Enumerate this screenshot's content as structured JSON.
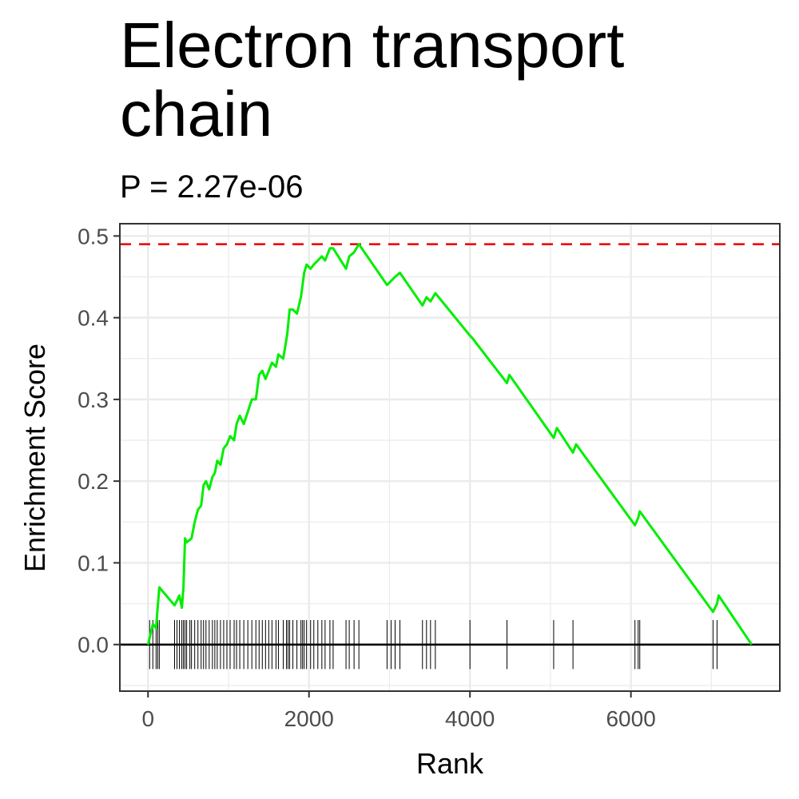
{
  "chart_data": {
    "type": "line",
    "title": "Electron transport chain",
    "subtitle": "P = 2.27e-06",
    "xlabel": "Rank",
    "ylabel": "Enrichment Score",
    "xlim": [
      -350,
      7850
    ],
    "ylim": [
      -0.057,
      0.515
    ],
    "x_ticks": [
      0,
      2000,
      4000,
      6000
    ],
    "y_ticks": [
      0.0,
      0.1,
      0.2,
      0.3,
      0.4,
      0.5
    ],
    "y_tick_labels": [
      "0.0",
      "0.1",
      "0.2",
      "0.3",
      "0.4",
      "0.5"
    ],
    "x_tick_labels": [
      "0",
      "2000",
      "4000",
      "6000"
    ],
    "grid": true,
    "colors": {
      "curve": "#00ee00",
      "max_line": "#ee0000",
      "zero_line": "#000000",
      "grid": "#ebebeb",
      "panel_border": "#333333",
      "ticks": "#000000"
    },
    "max_es": 0.49,
    "series": [
      {
        "points": [
          [
            0,
            0.0
          ],
          [
            60,
            0.025
          ],
          [
            100,
            0.02
          ],
          [
            120,
            0.045
          ],
          [
            140,
            0.07
          ],
          [
            330,
            0.048
          ],
          [
            390,
            0.06
          ],
          [
            420,
            0.045
          ],
          [
            440,
            0.07
          ],
          [
            460,
            0.13
          ],
          [
            480,
            0.125
          ],
          [
            540,
            0.13
          ],
          [
            580,
            0.15
          ],
          [
            620,
            0.165
          ],
          [
            660,
            0.17
          ],
          [
            690,
            0.195
          ],
          [
            720,
            0.2
          ],
          [
            760,
            0.19
          ],
          [
            800,
            0.205
          ],
          [
            830,
            0.21
          ],
          [
            860,
            0.225
          ],
          [
            900,
            0.22
          ],
          [
            940,
            0.24
          ],
          [
            980,
            0.245
          ],
          [
            1020,
            0.255
          ],
          [
            1070,
            0.25
          ],
          [
            1100,
            0.27
          ],
          [
            1140,
            0.28
          ],
          [
            1190,
            0.27
          ],
          [
            1240,
            0.285
          ],
          [
            1290,
            0.3
          ],
          [
            1340,
            0.3
          ],
          [
            1380,
            0.33
          ],
          [
            1420,
            0.335
          ],
          [
            1460,
            0.325
          ],
          [
            1500,
            0.335
          ],
          [
            1540,
            0.345
          ],
          [
            1590,
            0.34
          ],
          [
            1620,
            0.355
          ],
          [
            1680,
            0.35
          ],
          [
            1730,
            0.38
          ],
          [
            1760,
            0.41
          ],
          [
            1800,
            0.41
          ],
          [
            1850,
            0.405
          ],
          [
            1900,
            0.425
          ],
          [
            1940,
            0.455
          ],
          [
            1970,
            0.465
          ],
          [
            2020,
            0.46
          ],
          [
            2060,
            0.465
          ],
          [
            2110,
            0.47
          ],
          [
            2160,
            0.475
          ],
          [
            2200,
            0.47
          ],
          [
            2260,
            0.485
          ],
          [
            2300,
            0.485
          ],
          [
            2460,
            0.46
          ],
          [
            2500,
            0.475
          ],
          [
            2560,
            0.48
          ],
          [
            2620,
            0.49
          ],
          [
            2970,
            0.44
          ],
          [
            3020,
            0.445
          ],
          [
            3070,
            0.45
          ],
          [
            3130,
            0.455
          ],
          [
            3410,
            0.415
          ],
          [
            3460,
            0.425
          ],
          [
            3510,
            0.42
          ],
          [
            3570,
            0.43
          ],
          [
            4000,
            0.378
          ],
          [
            4030,
            0.375
          ],
          [
            4460,
            0.32
          ],
          [
            4490,
            0.33
          ],
          [
            5040,
            0.253
          ],
          [
            5080,
            0.265
          ],
          [
            5280,
            0.235
          ],
          [
            5320,
            0.245
          ],
          [
            6050,
            0.146
          ],
          [
            6090,
            0.155
          ],
          [
            6110,
            0.163
          ],
          [
            7020,
            0.04
          ],
          [
            7070,
            0.05
          ],
          [
            7090,
            0.06
          ],
          [
            7500,
            0.0
          ]
        ]
      }
    ],
    "gene_hits": [
      20,
      60,
      100,
      120,
      140,
      330,
      360,
      390,
      420,
      440,
      460,
      480,
      520,
      540,
      580,
      620,
      660,
      690,
      720,
      760,
      800,
      830,
      860,
      900,
      940,
      980,
      1020,
      1070,
      1100,
      1140,
      1190,
      1240,
      1290,
      1340,
      1380,
      1420,
      1460,
      1500,
      1540,
      1590,
      1620,
      1680,
      1720,
      1740,
      1760,
      1800,
      1850,
      1900,
      1920,
      1940,
      1970,
      2020,
      2060,
      2110,
      2160,
      2200,
      2260,
      2300,
      2460,
      2500,
      2560,
      2620,
      2970,
      3020,
      3070,
      3130,
      3410,
      3460,
      3510,
      3570,
      4000,
      4460,
      5040,
      5280,
      6050,
      6090,
      6110,
      7020,
      7070
    ]
  }
}
